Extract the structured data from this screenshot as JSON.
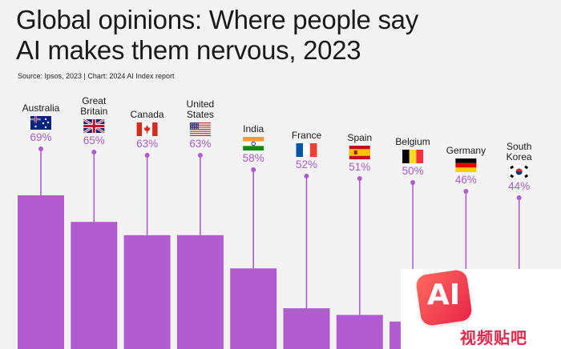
{
  "title_line1": "Global opinions: Where people say",
  "title_line2": "AI makes them nervous, 2023",
  "subtitle": "Source: Ipsos, 2023 | Chart: 2024 AI Index report",
  "watermark": {
    "badge": "AI",
    "caption": "视频贴吧"
  },
  "colors": {
    "bar": "#b05ccf",
    "label": "#a85bc9",
    "background": "#f3f3f3"
  },
  "chart_data": {
    "type": "bar",
    "title": "Global opinions: Where people say AI makes them nervous, 2023",
    "categories": [
      {
        "name": "Australia",
        "flag": "australia-flag"
      },
      {
        "name": "Great Britain",
        "flag": "uk-flag"
      },
      {
        "name": "Canada",
        "flag": "canada-flag"
      },
      {
        "name": "United States",
        "flag": "usa-flag"
      },
      {
        "name": "India",
        "flag": "india-flag"
      },
      {
        "name": "France",
        "flag": "france-flag"
      },
      {
        "name": "Spain",
        "flag": "spain-flag"
      },
      {
        "name": "Belgium",
        "flag": "belgium-flag"
      },
      {
        "name": "Germany",
        "flag": "germany-flag"
      },
      {
        "name": "South Korea",
        "flag": "south-korea-flag"
      }
    ],
    "values": [
      69,
      65,
      63,
      63,
      58,
      52,
      51,
      50,
      46,
      44
    ],
    "value_suffix": "%",
    "ylim": [
      0,
      100
    ],
    "grid": false,
    "legend": "none"
  }
}
